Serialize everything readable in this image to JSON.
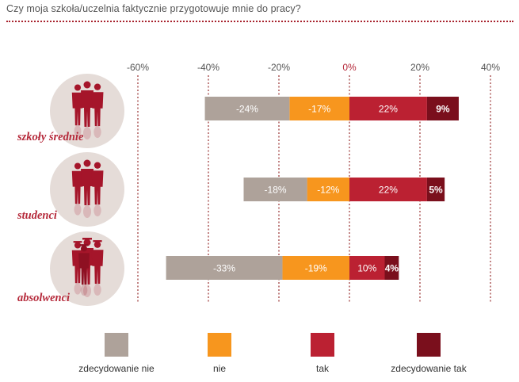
{
  "title": "Czy moja szkoła/uczelnia faktycznie przygotowuje mnie do pracy?",
  "chart_data": {
    "type": "bar",
    "orientation": "horizontal",
    "stacked": "diverging",
    "title": "Czy moja szkoła/uczelnia faktycznie przygotowuje mnie do pracy?",
    "xlabel": "",
    "ylabel": "",
    "xlim": [
      -60,
      40
    ],
    "x_ticks": [
      "-60%",
      "-40%",
      "-20%",
      "0%",
      "20%",
      "40%"
    ],
    "x_tick_values": [
      -60,
      -40,
      -20,
      0,
      20,
      40
    ],
    "grid": true,
    "legend_position": "bottom",
    "categories": [
      "szkoły średnie",
      "studenci",
      "absolwenci"
    ],
    "series": [
      {
        "name": "zdecydowanie nie",
        "color": "#aea29a",
        "values": [
          -24,
          -18,
          -33
        ],
        "labels": [
          "-24%",
          "-18%",
          "-33%"
        ]
      },
      {
        "name": "nie",
        "color": "#f7961e",
        "values": [
          -17,
          -12,
          -19
        ],
        "labels": [
          "-17%",
          "-12%",
          "-19%"
        ]
      },
      {
        "name": "tak",
        "color": "#bb2132",
        "values": [
          22,
          22,
          10
        ],
        "labels": [
          "22%",
          "22%",
          "10%"
        ]
      },
      {
        "name": "zdecydowanie tak",
        "color": "#7a0f1c",
        "values": [
          9,
          5,
          4
        ],
        "labels": [
          "9%",
          "5%",
          "4%"
        ]
      }
    ],
    "icons": [
      "people-silhouette-icon",
      "people-silhouette-icon",
      "graduates-silhouette-icon"
    ]
  }
}
